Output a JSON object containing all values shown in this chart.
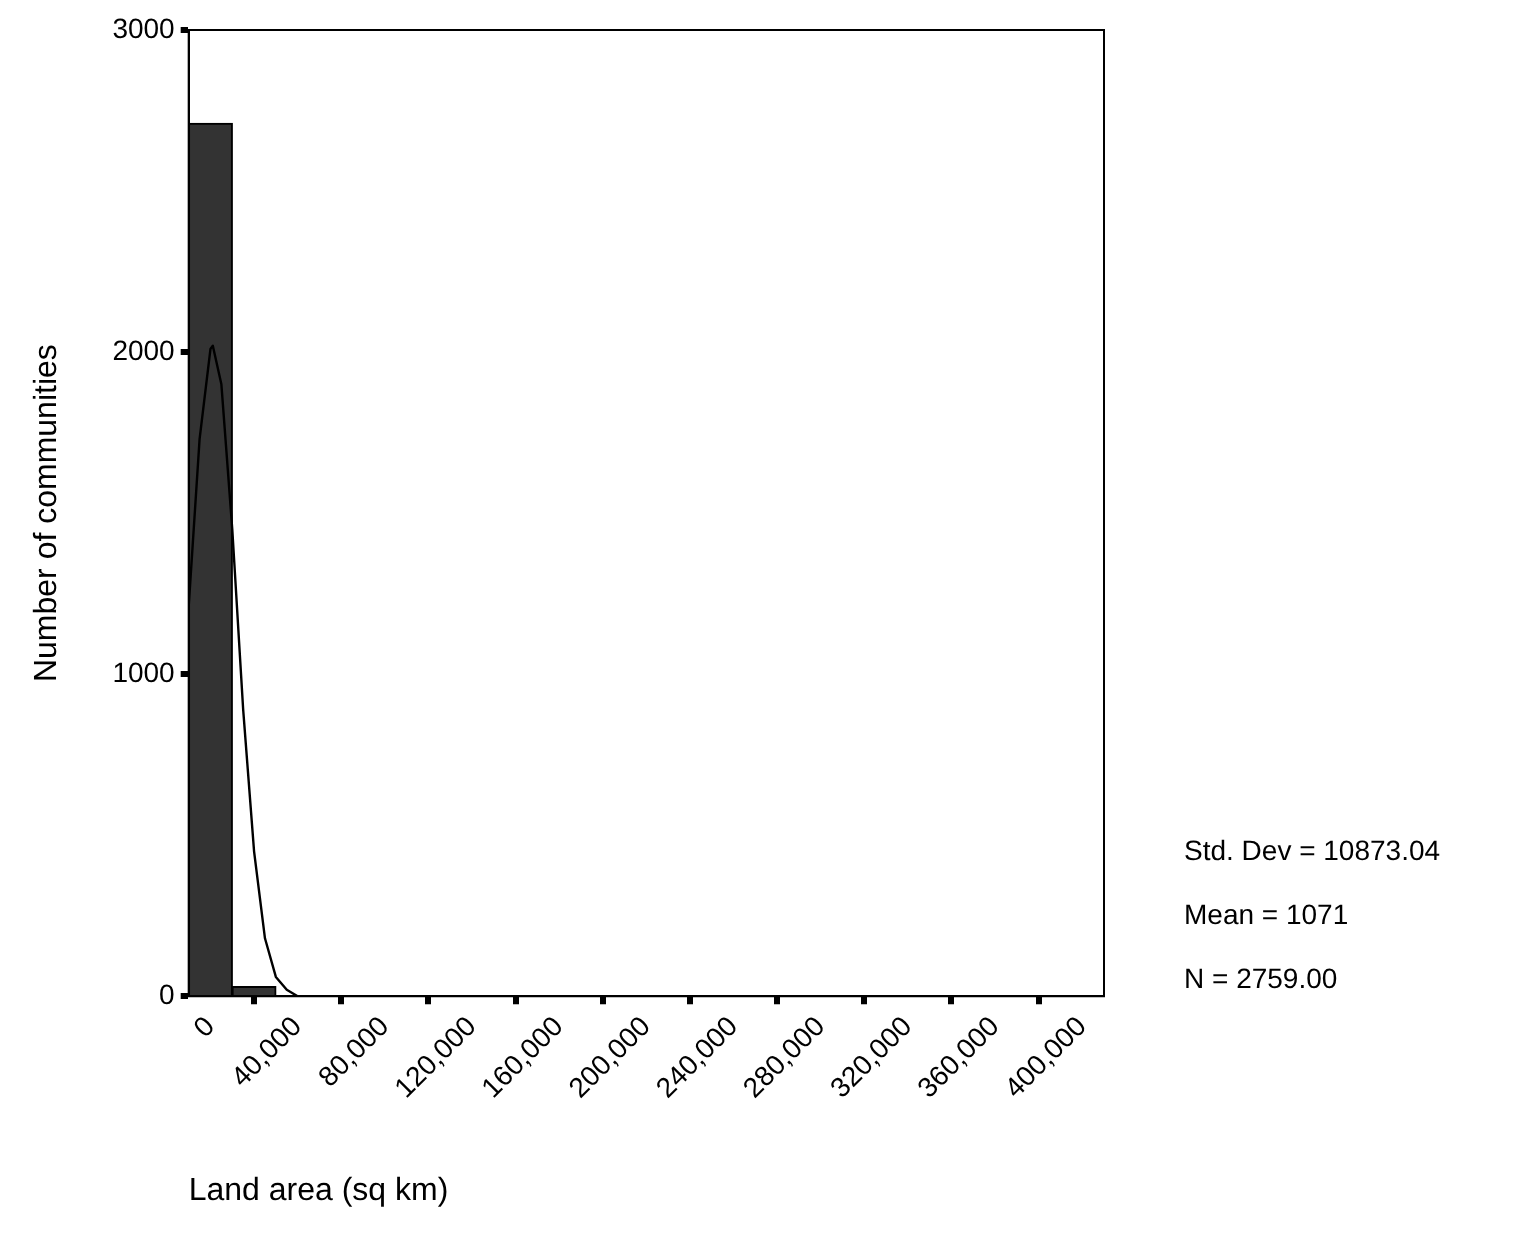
{
  "chart_data": {
    "type": "histogram",
    "xlabel": "Land area (sq km)",
    "ylabel": "Number of communities",
    "bins": [
      -10000,
      10000,
      30000,
      50000,
      70000,
      90000,
      110000,
      130000,
      150000,
      170000,
      190000,
      210000,
      230000,
      250000,
      270000,
      290000,
      310000,
      330000,
      350000,
      370000,
      390000,
      410000
    ],
    "values": [
      2710,
      30,
      0,
      0,
      0,
      0,
      0,
      0,
      0,
      0,
      0,
      0,
      0,
      0,
      0,
      0,
      0,
      0,
      0,
      0,
      0
    ],
    "color": "#333333",
    "series": [
      {
        "type": "line",
        "x": [
          -10000,
          -5000,
          0,
          1071,
          5000,
          10000,
          15000,
          20000,
          25000,
          30000,
          35000,
          40000,
          60000,
          400000
        ],
        "values": [
          1210,
          1730,
          2010,
          2020,
          1900,
          1450,
          890,
          450,
          180,
          60,
          20,
          0,
          0,
          0
        ],
        "color": "#000000"
      }
    ],
    "xlim": [
      -10000,
      410000
    ],
    "xticks": [
      {
        "value": 0,
        "label": "0"
      },
      {
        "value": 40000,
        "label": "40,000"
      },
      {
        "value": 80000,
        "label": "80,000"
      },
      {
        "value": 120000,
        "label": "120,000"
      },
      {
        "value": 160000,
        "label": "160,000"
      },
      {
        "value": 200000,
        "label": "200,000"
      },
      {
        "value": 240000,
        "label": "240,000"
      },
      {
        "value": 280000,
        "label": "280,000"
      },
      {
        "value": 320000,
        "label": "320,000"
      },
      {
        "value": 360000,
        "label": "360,000"
      },
      {
        "value": 400000,
        "label": "400,000"
      }
    ],
    "ylim": [
      0,
      3000
    ],
    "yticks": [
      0,
      1000,
      2000,
      3000
    ],
    "annotations": [
      "Std. Dev = 10873.04",
      "Mean = 1071",
      "N = 2759.00"
    ],
    "grid": false,
    "legend": false,
    "marker": "none"
  }
}
